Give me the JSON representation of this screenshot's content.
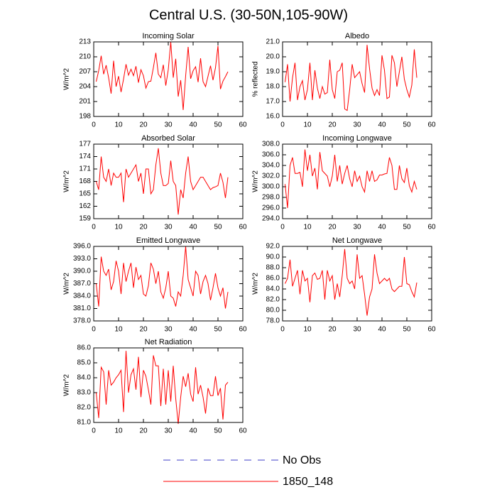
{
  "title": "Central U.S. (30-50N,105-90W)",
  "legend": [
    {
      "name": "No Obs",
      "color": "#3c3cc8",
      "dashed": true
    },
    {
      "name": "1850_148",
      "color": "#ff0000",
      "dashed": false
    }
  ],
  "chart_data": [
    {
      "type": "line",
      "title": "Incoming Solar",
      "ylabel": "W/m^2",
      "color": "#ff0000",
      "x": [
        1,
        2,
        3,
        4,
        5,
        6,
        7,
        8,
        9,
        10,
        11,
        12,
        13,
        14,
        15,
        16,
        17,
        18,
        19,
        20,
        21,
        22,
        23,
        24,
        25,
        26,
        27,
        28,
        29,
        30,
        31,
        32,
        33,
        34,
        35,
        36,
        37,
        38,
        39,
        40,
        41,
        42,
        43,
        44,
        45,
        46,
        47,
        48,
        49,
        50,
        51,
        52,
        53,
        54
      ],
      "values": [
        205.0,
        207.2,
        210.2,
        206.5,
        208.3,
        205.8,
        202.6,
        209.2,
        204.0,
        206.1,
        202.9,
        205.5,
        208.5,
        206.3,
        207.5,
        206.2,
        208.1,
        204.8,
        207.4,
        206.2,
        203.7,
        205.0,
        205.1,
        207.8,
        210.8,
        206.5,
        205.8,
        208.4,
        204.2,
        207.4,
        213.0,
        205.8,
        209.6,
        202.0,
        205.3,
        199.3,
        206.2,
        212.0,
        205.6,
        207.2,
        208.0,
        204.9,
        209.7,
        205.0,
        204.0,
        206.1,
        208.2,
        205.3,
        207.8,
        212.2,
        203.5,
        205.1,
        206.0,
        207.0
      ],
      "xlim": [
        0,
        60
      ],
      "xticks": [
        0,
        10,
        20,
        30,
        40,
        50,
        60
      ],
      "ylim": [
        198,
        213
      ],
      "yticks": [
        198,
        201,
        204,
        207,
        210,
        213
      ]
    },
    {
      "type": "line",
      "title": "Albedo",
      "ylabel": "% reflected",
      "color": "#ff0000",
      "x": [
        1,
        2,
        3,
        4,
        5,
        6,
        7,
        8,
        9,
        10,
        11,
        12,
        13,
        14,
        15,
        16,
        17,
        18,
        19,
        20,
        21,
        22,
        23,
        24,
        25,
        26,
        27,
        28,
        29,
        30,
        31,
        32,
        33,
        34,
        35,
        36,
        37,
        38,
        39,
        40,
        41,
        42,
        43,
        44,
        45,
        46,
        47,
        48,
        49,
        50,
        51,
        52,
        53,
        54
      ],
      "values": [
        18.3,
        19.5,
        17.0,
        18.6,
        19.6,
        17.1,
        18.0,
        18.4,
        17.1,
        17.8,
        19.6,
        17.1,
        19.1,
        17.9,
        17.2,
        18.0,
        17.5,
        17.6,
        19.8,
        17.8,
        17.2,
        19.0,
        19.1,
        19.6,
        16.5,
        16.4,
        17.8,
        19.5,
        18.6,
        18.8,
        19.0,
        18.2,
        17.6,
        20.8,
        19.2,
        17.9,
        17.4,
        17.8,
        17.4,
        20.1,
        19.1,
        17.2,
        17.3,
        20.1,
        19.6,
        18.0,
        19.0,
        20.0,
        18.5,
        17.8,
        17.3,
        18.1,
        20.5,
        18.6
      ],
      "xlim": [
        0,
        60
      ],
      "xticks": [
        0,
        10,
        20,
        30,
        40,
        50,
        60
      ],
      "ylim": [
        16,
        21
      ],
      "yticks": [
        {
          "value": 16,
          "label": "16.0"
        },
        {
          "value": 17,
          "label": "17.0"
        },
        {
          "value": 18,
          "label": "18.0"
        },
        {
          "value": 19,
          "label": "19.0"
        },
        {
          "value": 20,
          "label": "20.0"
        },
        {
          "value": 21,
          "label": "21.0"
        }
      ]
    },
    {
      "type": "line",
      "title": "Absorbed Solar",
      "ylabel": "W/m^2",
      "color": "#ff0000",
      "x": [
        1,
        2,
        3,
        4,
        5,
        6,
        7,
        8,
        9,
        10,
        11,
        12,
        13,
        14,
        15,
        16,
        17,
        18,
        19,
        20,
        21,
        22,
        23,
        24,
        25,
        26,
        27,
        28,
        29,
        30,
        31,
        32,
        33,
        34,
        35,
        36,
        37,
        38,
        39,
        40,
        41,
        42,
        43,
        44,
        45,
        46,
        47,
        48,
        49,
        50,
        51,
        52,
        53,
        54
      ],
      "values": [
        168,
        166,
        174,
        169,
        168,
        171,
        167,
        170,
        169,
        169,
        170,
        163,
        171,
        169,
        170,
        171,
        172,
        168,
        170,
        165,
        171,
        171,
        165,
        166,
        172,
        176,
        170,
        167,
        167,
        167.5,
        173,
        168,
        167,
        160,
        166,
        164,
        170,
        174,
        168,
        166,
        167,
        168,
        169,
        169,
        168,
        167,
        166,
        166.5,
        166.7,
        167,
        170,
        167.8,
        164,
        169
      ],
      "xlim": [
        0,
        60
      ],
      "xticks": [
        0,
        10,
        20,
        30,
        40,
        50,
        60
      ],
      "ylim": [
        159,
        177
      ],
      "yticks": [
        159,
        162,
        165,
        168,
        171,
        174,
        177
      ]
    },
    {
      "type": "line",
      "title": "Incoming Longwave",
      "ylabel": "W/m^2",
      "color": "#ff0000",
      "x": [
        1,
        2,
        3,
        4,
        5,
        6,
        7,
        8,
        9,
        10,
        11,
        12,
        13,
        14,
        15,
        16,
        17,
        18,
        19,
        20,
        21,
        22,
        23,
        24,
        25,
        26,
        27,
        28,
        29,
        30,
        31,
        32,
        33,
        34,
        35,
        36,
        37,
        38,
        39,
        40,
        41,
        42,
        43,
        44,
        45,
        46,
        47,
        48,
        49,
        50,
        51,
        52,
        53,
        54
      ],
      "values": [
        300.5,
        296,
        304,
        305.5,
        302.5,
        302.5,
        302.7,
        300,
        307,
        303,
        306,
        302,
        303.5,
        299.5,
        306.5,
        303,
        302.5,
        302,
        300,
        302,
        306,
        301,
        304,
        300.5,
        302.5,
        304,
        301.5,
        300,
        303,
        301,
        302,
        300,
        299,
        303,
        301,
        303,
        301,
        301.3,
        302.2,
        302.2,
        302.4,
        302.5,
        305.5,
        304,
        299.5,
        299.5,
        304,
        301.5,
        300.8,
        303.5,
        300.2,
        299,
        301,
        299.5
      ],
      "xlim": [
        0,
        60
      ],
      "xticks": [
        0,
        10,
        20,
        30,
        40,
        50,
        60
      ],
      "ylim": [
        294,
        308
      ],
      "yticks": [
        {
          "value": 294,
          "label": "294.0"
        },
        {
          "value": 296,
          "label": "296.0"
        },
        {
          "value": 298,
          "label": "298.0"
        },
        {
          "value": 300,
          "label": "300.0"
        },
        {
          "value": 302,
          "label": "302.0"
        },
        {
          "value": 304,
          "label": "304.0"
        },
        {
          "value": 306,
          "label": "306.0"
        },
        {
          "value": 308,
          "label": "308.0"
        }
      ]
    },
    {
      "type": "line",
      "title": "Emitted Longwave",
      "ylabel": "W/m^2",
      "color": "#ff0000",
      "x": [
        1,
        2,
        3,
        4,
        5,
        6,
        7,
        8,
        9,
        10,
        11,
        12,
        13,
        14,
        15,
        16,
        17,
        18,
        19,
        20,
        21,
        22,
        23,
        24,
        25,
        26,
        27,
        28,
        29,
        30,
        31,
        32,
        33,
        34,
        35,
        36,
        37,
        38,
        39,
        40,
        41,
        42,
        43,
        44,
        45,
        46,
        47,
        48,
        49,
        50,
        51,
        52,
        53,
        54
      ],
      "values": [
        387,
        381.5,
        393.5,
        390,
        389,
        390.5,
        385.5,
        387.5,
        392.5,
        390,
        384.5,
        392,
        387.5,
        390,
        392,
        386,
        391,
        388,
        389,
        384.5,
        384,
        386.5,
        392,
        390.5,
        387,
        390,
        385,
        383.5,
        386,
        390,
        384,
        383.5,
        381.5,
        385,
        384,
        389,
        396,
        388,
        386,
        384,
        390,
        389,
        384.5,
        387.5,
        389,
        387,
        383,
        386,
        389.5,
        386,
        384,
        386,
        381,
        385
      ],
      "xlim": [
        0,
        60
      ],
      "xticks": [
        0,
        10,
        20,
        30,
        40,
        50,
        60
      ],
      "ylim": [
        378,
        396
      ],
      "yticks": [
        {
          "value": 378,
          "label": "378.0"
        },
        {
          "value": 381,
          "label": "381.0"
        },
        {
          "value": 384,
          "label": "384.0"
        },
        {
          "value": 387,
          "label": "387.0"
        },
        {
          "value": 390,
          "label": "390.0"
        },
        {
          "value": 393,
          "label": "393.0"
        },
        {
          "value": 396,
          "label": "396.0"
        }
      ]
    },
    {
      "type": "line",
      "title": "Net Longwave",
      "ylabel": "W/m^2",
      "color": "#ff0000",
      "x": [
        1,
        2,
        3,
        4,
        5,
        6,
        7,
        8,
        9,
        10,
        11,
        12,
        13,
        14,
        15,
        16,
        17,
        18,
        19,
        20,
        21,
        22,
        23,
        24,
        25,
        26,
        27,
        28,
        29,
        30,
        31,
        32,
        33,
        34,
        35,
        36,
        37,
        38,
        39,
        40,
        41,
        42,
        43,
        44,
        45,
        46,
        47,
        48,
        49,
        50,
        51,
        52,
        53,
        54
      ],
      "values": [
        85,
        86,
        89.5,
        84.5,
        86,
        87.5,
        83,
        87.5,
        85.5,
        86,
        81.5,
        86.5,
        87,
        85.8,
        86,
        87.5,
        82,
        87.5,
        85.5,
        86.5,
        82,
        85,
        82.5,
        86.5,
        91.5,
        86,
        85,
        85.5,
        84,
        90.5,
        86,
        86.5,
        83,
        79,
        82.5,
        84,
        90.5,
        87,
        85,
        85.5,
        86,
        85.5,
        86,
        84,
        83.5,
        84,
        84.5,
        84.5,
        90,
        85,
        84.8,
        83.5,
        82.5,
        85.2
      ],
      "xlim": [
        0,
        60
      ],
      "xticks": [
        0,
        10,
        20,
        30,
        40,
        50,
        60
      ],
      "ylim": [
        78,
        92
      ],
      "yticks": [
        {
          "value": 78,
          "label": "78.0"
        },
        {
          "value": 80,
          "label": "80.0"
        },
        {
          "value": 82,
          "label": "82.0"
        },
        {
          "value": 84,
          "label": "84.0"
        },
        {
          "value": 86,
          "label": "86.0"
        },
        {
          "value": 88,
          "label": "88.0"
        },
        {
          "value": 90,
          "label": "90.0"
        },
        {
          "value": 92,
          "label": "92.0"
        }
      ]
    },
    {
      "type": "line",
      "title": "Net Radiation",
      "ylabel": "W/m^2",
      "color": "#ff0000",
      "x": [
        1,
        2,
        3,
        4,
        5,
        6,
        7,
        8,
        9,
        10,
        11,
        12,
        13,
        14,
        15,
        16,
        17,
        18,
        19,
        20,
        21,
        22,
        23,
        24,
        25,
        26,
        27,
        28,
        29,
        30,
        31,
        32,
        33,
        34,
        35,
        36,
        37,
        38,
        39,
        40,
        41,
        42,
        43,
        44,
        45,
        46,
        47,
        48,
        49,
        50,
        51,
        52,
        53,
        54
      ],
      "values": [
        83,
        81.3,
        84.7,
        84.4,
        82.2,
        84.5,
        83.5,
        83.7,
        84,
        84.2,
        84.5,
        81.7,
        85.8,
        83,
        84.2,
        84.6,
        83.2,
        85.4,
        82.7,
        84.5,
        84.1,
        83.2,
        82.2,
        85.5,
        84.8,
        84.8,
        82.1,
        84.6,
        82.2,
        84.5,
        82.4,
        84.8,
        82.6,
        80.9,
        82.7,
        84.1,
        83.4,
        84.3,
        82.9,
        82.4,
        84.7,
        82.9,
        83.5,
        82.7,
        81.6,
        83.3,
        82.8,
        82.8,
        84.1,
        82.8,
        83.3,
        81.2,
        83.5,
        83.7
      ],
      "xlim": [
        0,
        60
      ],
      "xticks": [
        0,
        10,
        20,
        30,
        40,
        50,
        60
      ],
      "ylim": [
        81,
        86
      ],
      "yticks": [
        {
          "value": 81,
          "label": "81.0"
        },
        {
          "value": 82,
          "label": "82.0"
        },
        {
          "value": 83,
          "label": "83.0"
        },
        {
          "value": 84,
          "label": "84.0"
        },
        {
          "value": 85,
          "label": "85.0"
        },
        {
          "value": 86,
          "label": "86.0"
        }
      ]
    }
  ]
}
